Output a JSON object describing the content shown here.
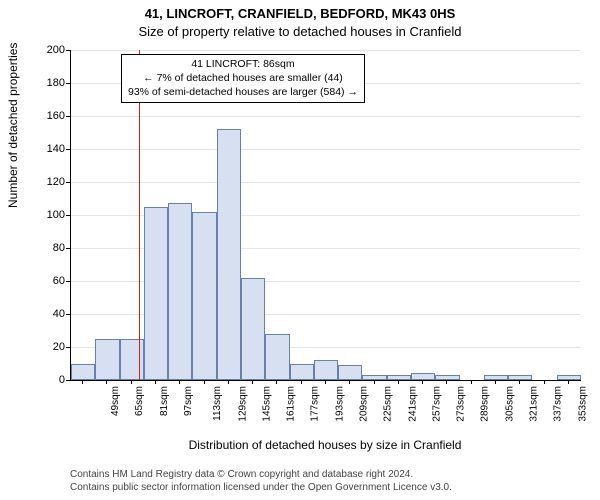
{
  "title_line1": "41, LINCROFT, CRANFIELD, BEDFORD, MK43 0HS",
  "title_line2": "Size of property relative to detached houses in Cranfield",
  "ylabel": "Number of detached properties",
  "xlabel": "Distribution of detached houses by size in Cranfield",
  "footer_line1": "Contains HM Land Registry data © Crown copyright and database right 2024.",
  "footer_line2": "Contains public sector information licensed under the Open Government Licence v3.0.",
  "chart": {
    "type": "histogram",
    "ylim": [
      0,
      200
    ],
    "ytick_step": 20,
    "xtick_start": 49,
    "xtick_step": 16,
    "xtick_count": 21,
    "xtick_unit": "sqm",
    "bar_fill": "#d7e0f0",
    "bar_stroke": "#6b7fa8",
    "grid_color": "#e5e5e5",
    "background_color": "#ffffff",
    "bar_bin_width_sqm": 16,
    "bars": [
      {
        "x_start": 41,
        "value": 10
      },
      {
        "x_start": 57,
        "value": 25
      },
      {
        "x_start": 73,
        "value": 25
      },
      {
        "x_start": 89,
        "value": 105
      },
      {
        "x_start": 105,
        "value": 107
      },
      {
        "x_start": 121,
        "value": 102
      },
      {
        "x_start": 137,
        "value": 152
      },
      {
        "x_start": 153,
        "value": 62
      },
      {
        "x_start": 169,
        "value": 28
      },
      {
        "x_start": 185,
        "value": 10
      },
      {
        "x_start": 201,
        "value": 12
      },
      {
        "x_start": 217,
        "value": 9
      },
      {
        "x_start": 233,
        "value": 3
      },
      {
        "x_start": 249,
        "value": 3
      },
      {
        "x_start": 265,
        "value": 4
      },
      {
        "x_start": 281,
        "value": 3
      },
      {
        "x_start": 297,
        "value": 0
      },
      {
        "x_start": 313,
        "value": 3
      },
      {
        "x_start": 329,
        "value": 3
      },
      {
        "x_start": 345,
        "value": 0
      },
      {
        "x_start": 361,
        "value": 3
      }
    ],
    "marker": {
      "x_sqm": 86,
      "color": "#d01f1f"
    },
    "annotation": {
      "line1": "41 LINCROFT: 86sqm",
      "line2": "← 7% of detached houses are smaller (44)",
      "line3": "93% of semi-detached houses are larger (584) →",
      "border_color": "#000000",
      "fontsize": 10.5
    }
  }
}
